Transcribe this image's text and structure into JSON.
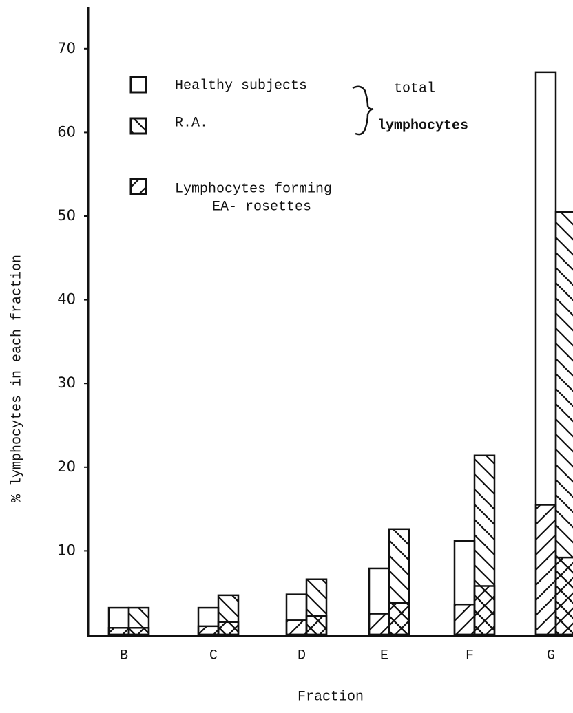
{
  "chart_data": {
    "type": "bar",
    "y_label": "% lymphocytes in each fraction",
    "x_label": "Fraction",
    "categories": [
      "B",
      "C",
      "D",
      "E",
      "F",
      "G"
    ],
    "series": [
      {
        "name": "Healthy subjects",
        "color": "#ffffff",
        "values": [
          3.2,
          3.2,
          4.8,
          7.9,
          11.2,
          67.2
        ],
        "ea_values": [
          0.8,
          1.0,
          1.7,
          2.5,
          3.6,
          15.5
        ]
      },
      {
        "name": "R.A.",
        "color": "#ffffff",
        "values": [
          3.2,
          4.7,
          6.6,
          12.6,
          21.4,
          50.5
        ],
        "ea_values": [
          0.8,
          1.5,
          2.2,
          3.8,
          5.8,
          9.2
        ]
      }
    ],
    "brace_label": [
      "total",
      "lymphocytes"
    ],
    "ea_label": [
      "Lymphocytes forming",
      "EA- rosettes"
    ],
    "ylim": [
      0,
      75
    ],
    "yticks": [
      10,
      20,
      30,
      40,
      50,
      60,
      70
    ]
  }
}
